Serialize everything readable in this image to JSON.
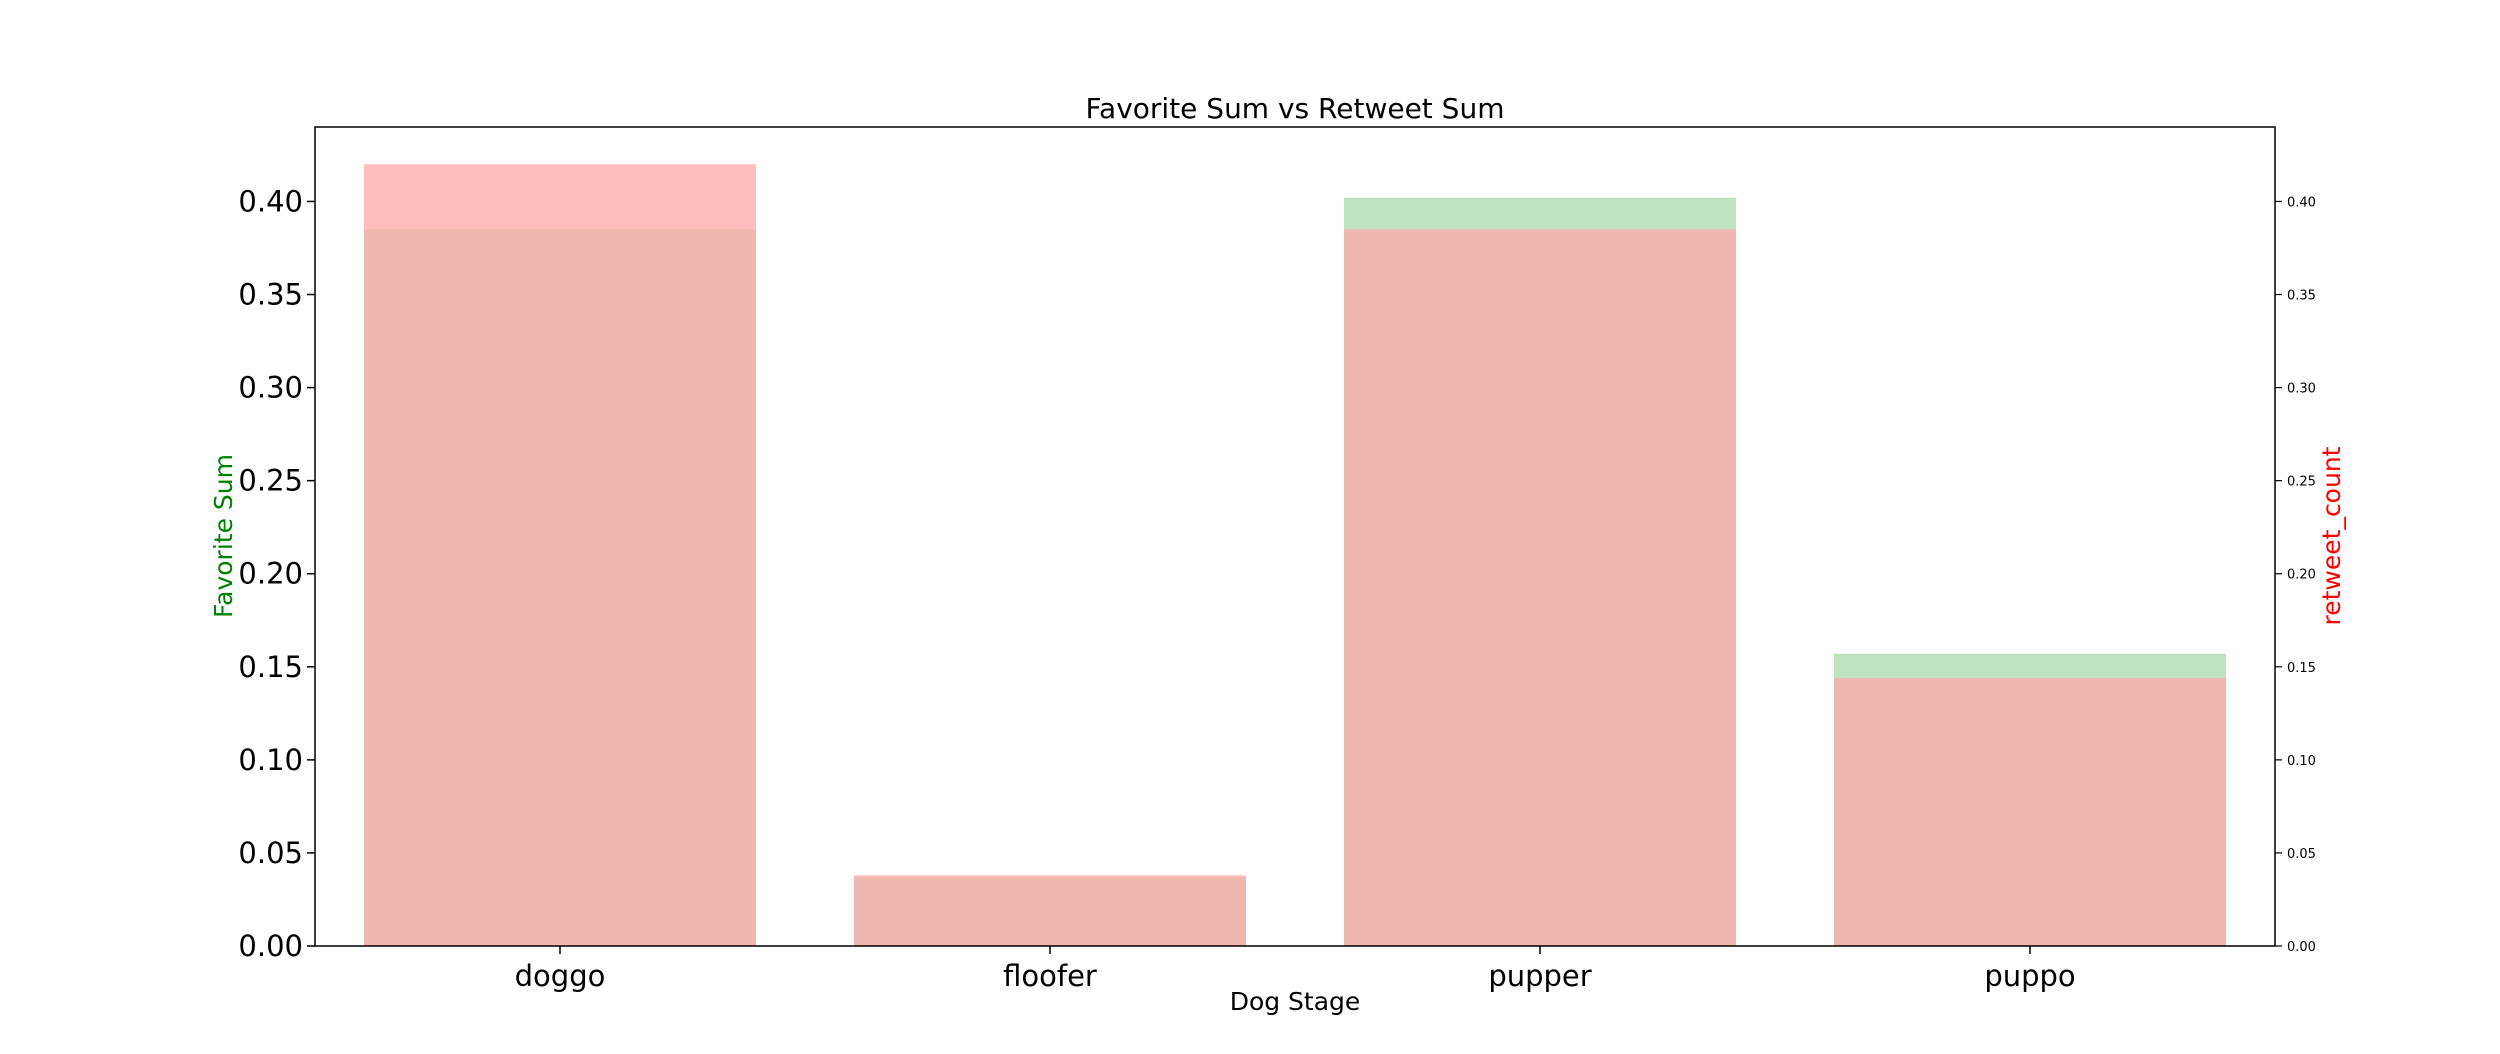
{
  "chart_data": {
    "type": "bar",
    "title": "Favorite Sum vs Retweet Sum",
    "xlabel": "Dog Stage",
    "ylabel_left": "Favorite Sum",
    "ylabel_right": "retweet_count",
    "categories": [
      "doggo",
      "floofer",
      "pupper",
      "puppo"
    ],
    "ylim_left": [
      0,
      0.44
    ],
    "ylim_right": [
      0,
      0.44
    ],
    "yticks_left": [
      "0.00",
      "0.05",
      "0.10",
      "0.15",
      "0.20",
      "0.25",
      "0.30",
      "0.35",
      "0.40"
    ],
    "yticks_right": [
      "0.00",
      "0.05",
      "0.10",
      "0.15",
      "0.20",
      "0.25",
      "0.30",
      "0.35",
      "0.40"
    ],
    "series": [
      {
        "name": "Favorite Sum",
        "axis": "left",
        "color": "#a9d8a9",
        "values": [
          0.385,
          0.037,
          0.402,
          0.157
        ]
      },
      {
        "name": "retweet_count",
        "axis": "right",
        "color": "#ffa8a8",
        "values": [
          0.42,
          0.038,
          0.385,
          0.144
        ]
      }
    ],
    "colors": {
      "left_label": "#008000",
      "right_label": "#ff0000",
      "overlap": "#cfa68e"
    },
    "grid": false,
    "legend": "none"
  }
}
